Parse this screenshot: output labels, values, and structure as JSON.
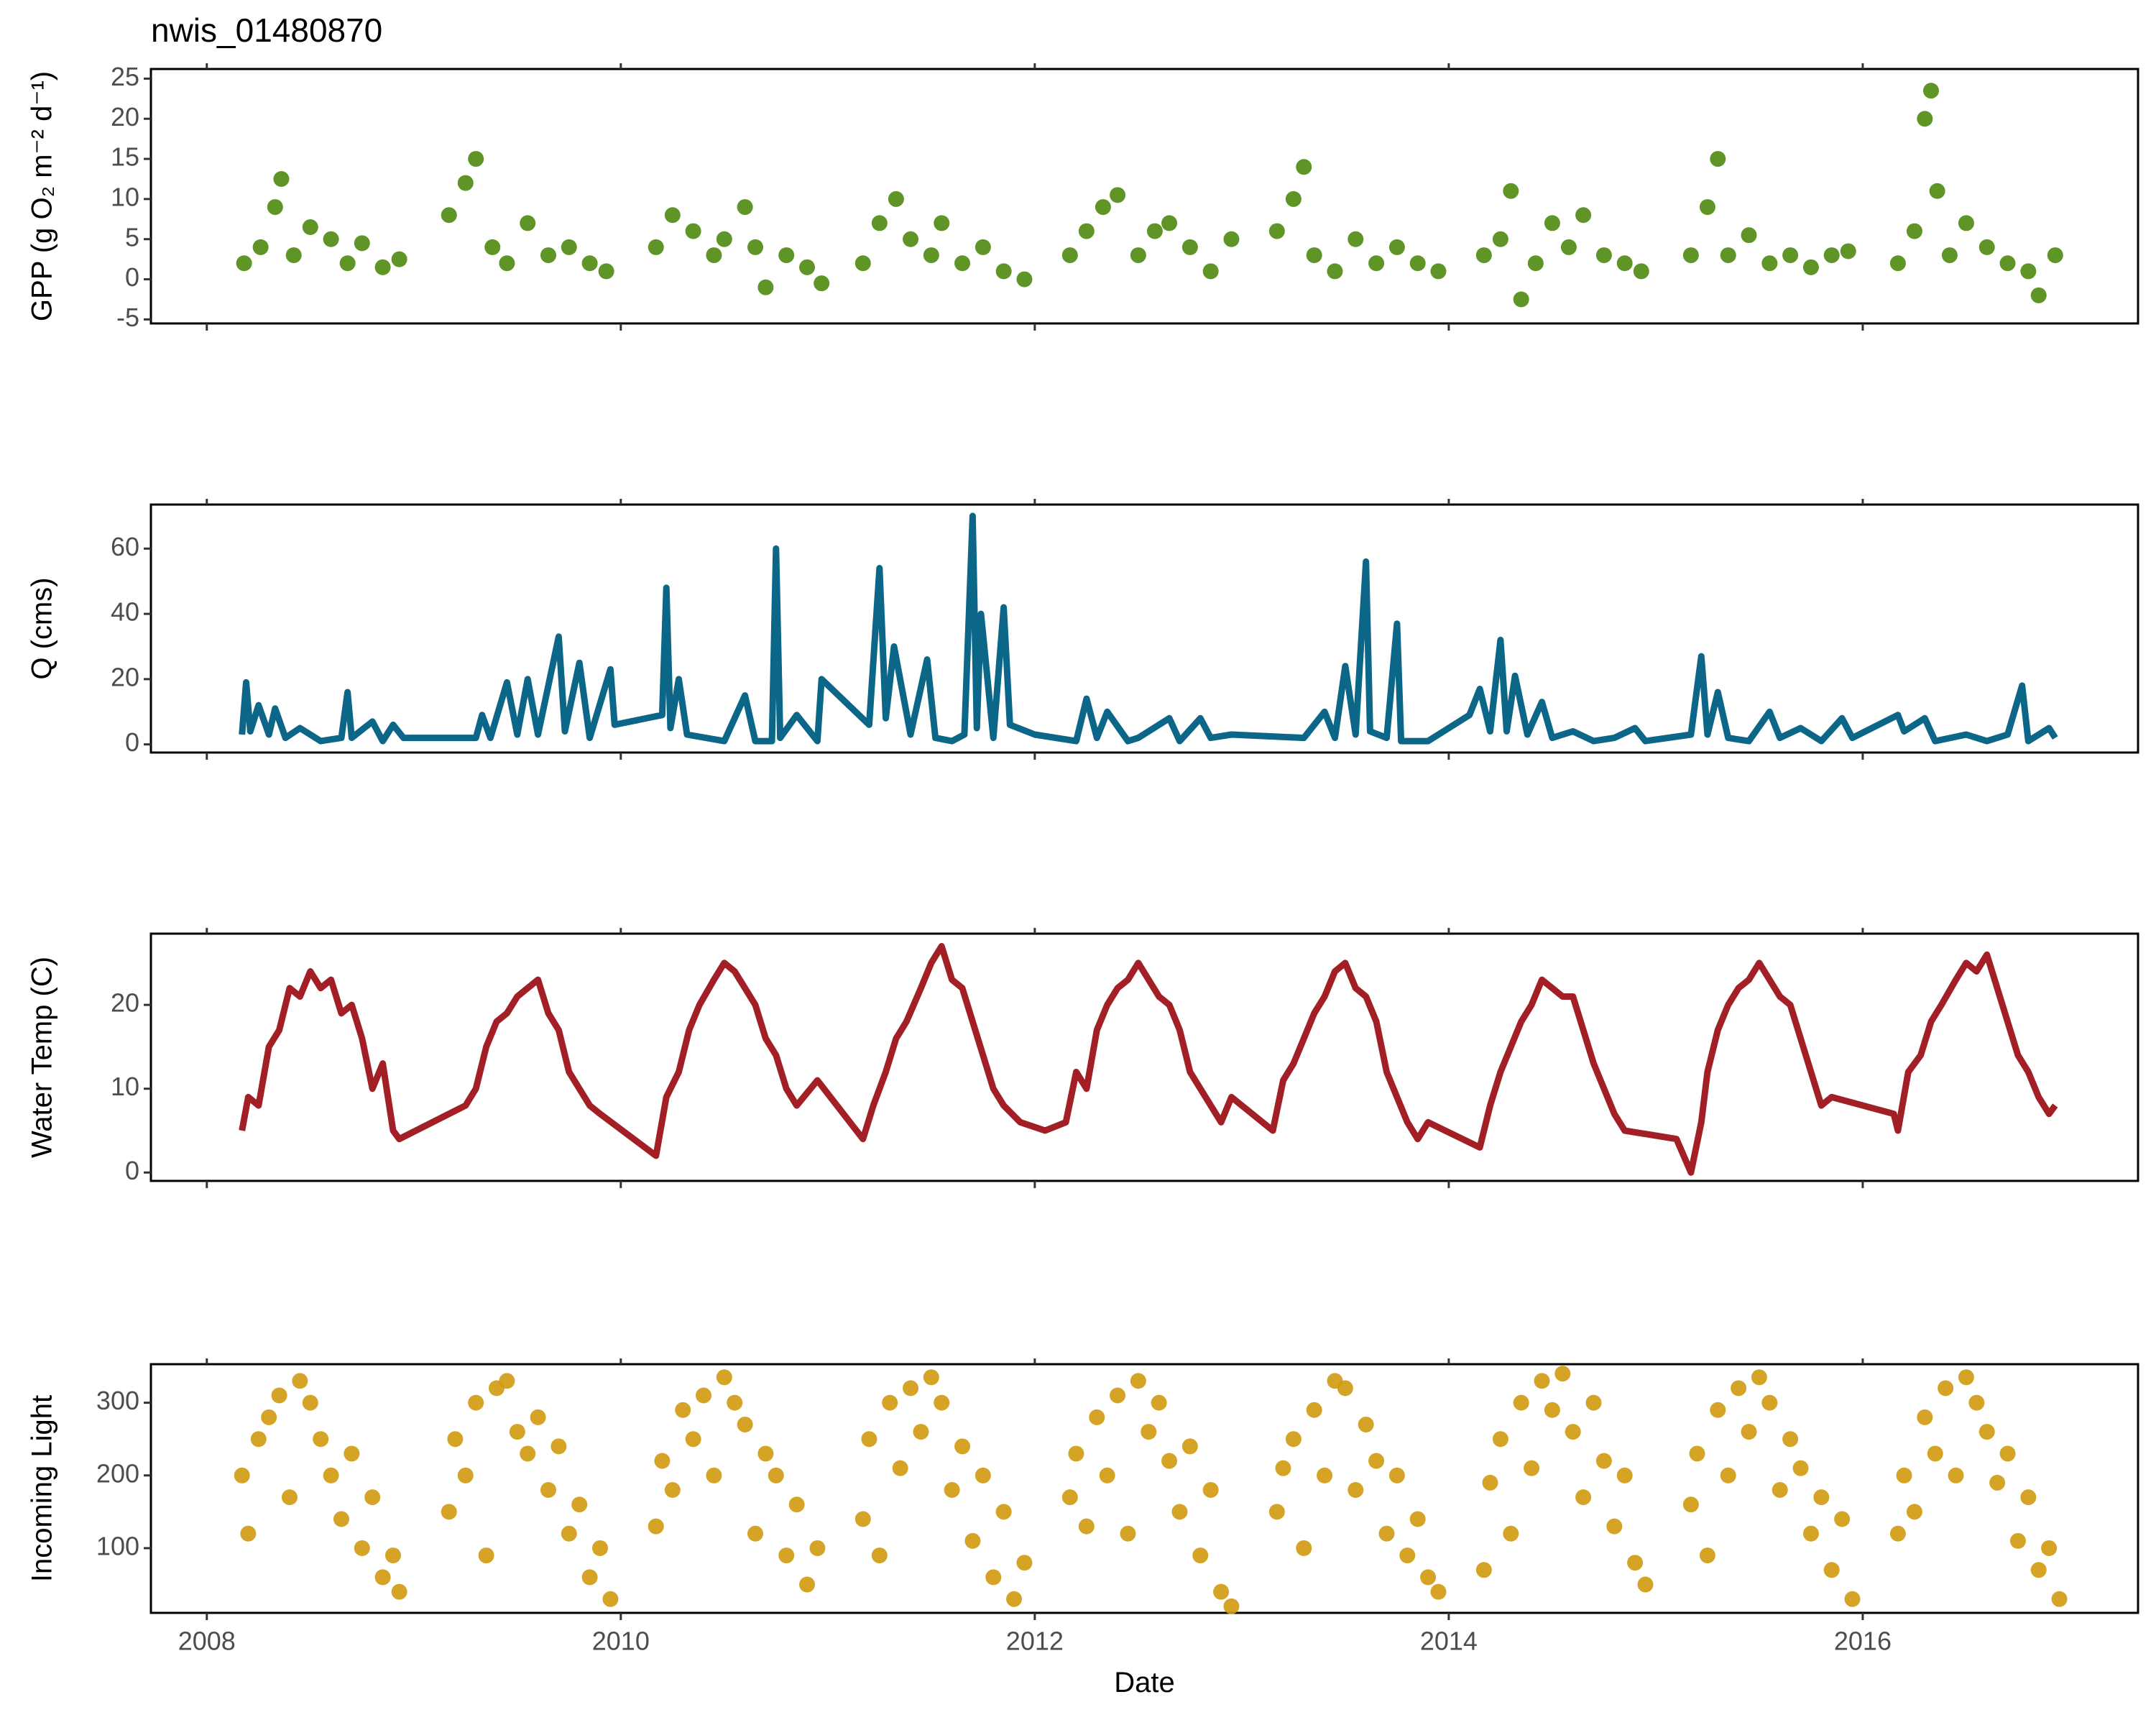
{
  "chart_data": [
    {
      "type": "scatter",
      "title": "nwis_01480870",
      "ylabel": "GPP (g O₂ m⁻² d⁻¹)",
      "color": "#4e8a0e",
      "xlim": [
        2007.73,
        2017.33
      ],
      "ylim": [
        -5.5,
        26.2
      ],
      "yticks": [
        -5,
        0,
        5,
        10,
        15,
        20,
        25
      ],
      "x": [
        2008.18,
        2008.26,
        2008.33,
        2008.36,
        2008.42,
        2008.5,
        2008.6,
        2008.68,
        2008.75,
        2008.85,
        2008.93,
        2009.17,
        2009.25,
        2009.3,
        2009.38,
        2009.45,
        2009.55,
        2009.65,
        2009.75,
        2009.85,
        2009.93,
        2010.17,
        2010.25,
        2010.35,
        2010.45,
        2010.5,
        2010.6,
        2010.65,
        2010.7,
        2010.8,
        2010.9,
        2010.97,
        2011.17,
        2011.25,
        2011.33,
        2011.4,
        2011.5,
        2011.55,
        2011.65,
        2011.75,
        2011.85,
        2011.95,
        2012.17,
        2012.25,
        2012.33,
        2012.4,
        2012.5,
        2012.58,
        2012.65,
        2012.75,
        2012.85,
        2012.95,
        2013.17,
        2013.25,
        2013.3,
        2013.35,
        2013.45,
        2013.55,
        2013.65,
        2013.75,
        2013.85,
        2013.95,
        2014.17,
        2014.25,
        2014.3,
        2014.35,
        2014.42,
        2014.5,
        2014.58,
        2014.65,
        2014.75,
        2014.85,
        2014.93,
        2015.17,
        2015.25,
        2015.3,
        2015.35,
        2015.45,
        2015.55,
        2015.65,
        2015.75,
        2015.85,
        2015.93,
        2016.17,
        2016.25,
        2016.3,
        2016.33,
        2016.36,
        2016.42,
        2016.5,
        2016.6,
        2016.7,
        2016.8,
        2016.85,
        2016.93
      ],
      "values": [
        2,
        4,
        9,
        12.5,
        3,
        6.5,
        5,
        2,
        4.5,
        1.5,
        2.5,
        8,
        12,
        15,
        4,
        2,
        7,
        3,
        4,
        2,
        1,
        4,
        8,
        6,
        3,
        5,
        9,
        4,
        -1,
        3,
        1.5,
        -0.5,
        2,
        7,
        10,
        5,
        3,
        7,
        2,
        4,
        1,
        0,
        3,
        6,
        9,
        10.5,
        3,
        6,
        7,
        4,
        1,
        5,
        6,
        10,
        14,
        3,
        1,
        5,
        2,
        4,
        2,
        1,
        3,
        5,
        11,
        -2.5,
        2,
        7,
        4,
        8,
        3,
        2,
        1,
        3,
        9,
        15,
        3,
        5.5,
        2,
        3,
        1.5,
        3,
        3.5,
        2,
        6,
        20,
        23.5,
        11,
        3,
        7,
        4,
        2,
        1,
        -2,
        3
      ]
    },
    {
      "type": "line",
      "ylabel": "Q (cms)",
      "color": "#0b6688",
      "xlim": [
        2007.73,
        2017.33
      ],
      "ylim": [
        -2.5,
        73.5
      ],
      "yticks": [
        0,
        20,
        40,
        60
      ],
      "x": [
        2008.17,
        2008.19,
        2008.21,
        2008.25,
        2008.3,
        2008.33,
        2008.38,
        2008.45,
        2008.55,
        2008.65,
        2008.68,
        2008.7,
        2008.8,
        2008.85,
        2008.9,
        2008.95,
        2009.3,
        2009.33,
        2009.37,
        2009.45,
        2009.5,
        2009.55,
        2009.6,
        2009.7,
        2009.73,
        2009.8,
        2009.85,
        2009.95,
        2009.97,
        2010.2,
        2010.22,
        2010.24,
        2010.28,
        2010.32,
        2010.5,
        2010.6,
        2010.65,
        2010.73,
        2010.75,
        2010.77,
        2010.85,
        2010.95,
        2010.97,
        2011.2,
        2011.25,
        2011.28,
        2011.32,
        2011.4,
        2011.48,
        2011.52,
        2011.6,
        2011.66,
        2011.7,
        2011.72,
        2011.74,
        2011.8,
        2011.85,
        2011.88,
        2012.0,
        2012.2,
        2012.25,
        2012.3,
        2012.35,
        2012.45,
        2012.5,
        2012.65,
        2012.7,
        2012.8,
        2012.85,
        2012.95,
        2013.3,
        2013.4,
        2013.45,
        2013.5,
        2013.55,
        2013.6,
        2013.62,
        2013.7,
        2013.75,
        2013.77,
        2013.9,
        2014.1,
        2014.15,
        2014.2,
        2014.25,
        2014.28,
        2014.32,
        2014.38,
        2014.45,
        2014.5,
        2014.6,
        2014.7,
        2014.8,
        2014.9,
        2014.95,
        2015.17,
        2015.22,
        2015.25,
        2015.3,
        2015.35,
        2015.45,
        2015.55,
        2015.6,
        2015.7,
        2015.8,
        2015.9,
        2015.95,
        2016.17,
        2016.2,
        2016.3,
        2016.35,
        2016.5,
        2016.6,
        2016.7,
        2016.77,
        2016.8,
        2016.9,
        2016.93
      ],
      "values": [
        3,
        19,
        4,
        12,
        3,
        11,
        2,
        5,
        1,
        2,
        16,
        2,
        7,
        1,
        6,
        2,
        2,
        9,
        2,
        19,
        3,
        20,
        3,
        33,
        4,
        25,
        2,
        23,
        6,
        9,
        48,
        5,
        20,
        3,
        1,
        15,
        1,
        1,
        60,
        2,
        9,
        1,
        20,
        6,
        54,
        8,
        30,
        3,
        26,
        2,
        1,
        3,
        70,
        5,
        40,
        2,
        42,
        6,
        3,
        1,
        14,
        2,
        10,
        1,
        2,
        8,
        1,
        8,
        2,
        3,
        2,
        10,
        2,
        24,
        3,
        56,
        4,
        2,
        37,
        1,
        1,
        9,
        17,
        4,
        32,
        4,
        21,
        3,
        13,
        2,
        4,
        1,
        2,
        5,
        1,
        3,
        27,
        3,
        16,
        2,
        1,
        10,
        2,
        5,
        1,
        8,
        2,
        9,
        4,
        8,
        1,
        3,
        1,
        3,
        18,
        1,
        5,
        2
      ]
    },
    {
      "type": "line",
      "ylabel": "Water Temp (C)",
      "color": "#a21f25",
      "xlim": [
        2007.73,
        2017.33
      ],
      "ylim": [
        -1,
        28.5
      ],
      "yticks": [
        0,
        10,
        20
      ],
      "x": [
        2008.17,
        2008.2,
        2008.25,
        2008.3,
        2008.35,
        2008.4,
        2008.45,
        2008.5,
        2008.55,
        2008.6,
        2008.65,
        2008.7,
        2008.75,
        2008.8,
        2008.85,
        2008.9,
        2008.93,
        2009.25,
        2009.3,
        2009.35,
        2009.4,
        2009.45,
        2009.5,
        2009.55,
        2009.6,
        2009.65,
        2009.7,
        2009.75,
        2009.8,
        2009.85,
        2009.9,
        2010.17,
        2010.22,
        2010.28,
        2010.33,
        2010.38,
        2010.45,
        2010.5,
        2010.55,
        2010.6,
        2010.65,
        2010.7,
        2010.75,
        2010.8,
        2010.85,
        2010.95,
        2011.17,
        2011.22,
        2011.28,
        2011.33,
        2011.38,
        2011.45,
        2011.5,
        2011.55,
        2011.6,
        2011.65,
        2011.7,
        2011.75,
        2011.8,
        2011.85,
        2011.93,
        2012.05,
        2012.15,
        2012.2,
        2012.25,
        2012.3,
        2012.35,
        2012.4,
        2012.45,
        2012.5,
        2012.55,
        2012.6,
        2012.65,
        2012.7,
        2012.75,
        2012.8,
        2012.9,
        2012.95,
        2013.15,
        2013.2,
        2013.25,
        2013.3,
        2013.35,
        2013.4,
        2013.45,
        2013.5,
        2013.55,
        2013.6,
        2013.65,
        2013.7,
        2013.75,
        2013.8,
        2013.85,
        2013.9,
        2014.15,
        2014.2,
        2014.25,
        2014.3,
        2014.35,
        2014.4,
        2014.45,
        2014.5,
        2014.55,
        2014.6,
        2014.65,
        2014.7,
        2014.75,
        2014.8,
        2014.85,
        2015.1,
        2015.17,
        2015.22,
        2015.25,
        2015.3,
        2015.35,
        2015.4,
        2015.45,
        2015.5,
        2015.55,
        2015.6,
        2015.65,
        2015.7,
        2015.75,
        2015.8,
        2015.85,
        2016.15,
        2016.17,
        2016.22,
        2016.28,
        2016.33,
        2016.38,
        2016.45,
        2016.5,
        2016.55,
        2016.6,
        2016.65,
        2016.7,
        2016.75,
        2016.8,
        2016.85,
        2016.9,
        2016.93
      ],
      "values": [
        5,
        9,
        8,
        15,
        17,
        22,
        21,
        24,
        22,
        23,
        19,
        20,
        16,
        10,
        13,
        5,
        4,
        8,
        10,
        15,
        18,
        19,
        21,
        22,
        23,
        19,
        17,
        12,
        10,
        8,
        7,
        2,
        9,
        12,
        17,
        20,
        23,
        25,
        24,
        22,
        20,
        16,
        14,
        10,
        8,
        11,
        4,
        8,
        12,
        16,
        18,
        22,
        25,
        27,
        23,
        22,
        18,
        14,
        10,
        8,
        6,
        5,
        6,
        12,
        10,
        17,
        20,
        22,
        23,
        25,
        23,
        21,
        20,
        17,
        12,
        10,
        6,
        9,
        5,
        11,
        13,
        16,
        19,
        21,
        24,
        25,
        22,
        21,
        18,
        12,
        9,
        6,
        4,
        6,
        3,
        8,
        12,
        15,
        18,
        20,
        23,
        22,
        21,
        21,
        17,
        13,
        10,
        7,
        5,
        4,
        0,
        6,
        12,
        17,
        20,
        22,
        23,
        25,
        23,
        21,
        20,
        16,
        12,
        8,
        9,
        7,
        5,
        12,
        14,
        18,
        20,
        23,
        25,
        24,
        26,
        22,
        18,
        14,
        12,
        9,
        7,
        8
      ]
    },
    {
      "type": "scatter",
      "ylabel": "Incoming Light",
      "xlabel": "Date",
      "color": "#d09a0e",
      "xlim": [
        2007.73,
        2017.33
      ],
      "ylim": [
        11,
        353
      ],
      "yticks": [
        100,
        200,
        300
      ],
      "xticks": [
        2008,
        2010,
        2012,
        2014,
        2016
      ],
      "x": [
        2008.17,
        2008.2,
        2008.25,
        2008.3,
        2008.35,
        2008.4,
        2008.45,
        2008.5,
        2008.55,
        2008.6,
        2008.65,
        2008.7,
        2008.75,
        2008.8,
        2008.85,
        2008.9,
        2008.93,
        2009.17,
        2009.2,
        2009.25,
        2009.3,
        2009.35,
        2009.4,
        2009.45,
        2009.5,
        2009.55,
        2009.6,
        2009.65,
        2009.7,
        2009.75,
        2009.8,
        2009.85,
        2009.9,
        2009.95,
        2010.17,
        2010.2,
        2010.25,
        2010.3,
        2010.35,
        2010.4,
        2010.45,
        2010.5,
        2010.55,
        2010.6,
        2010.65,
        2010.7,
        2010.75,
        2010.8,
        2010.85,
        2010.9,
        2010.95,
        2011.17,
        2011.2,
        2011.25,
        2011.3,
        2011.35,
        2011.4,
        2011.45,
        2011.5,
        2011.55,
        2011.6,
        2011.65,
        2011.7,
        2011.75,
        2011.8,
        2011.85,
        2011.9,
        2011.95,
        2012.17,
        2012.2,
        2012.25,
        2012.3,
        2012.35,
        2012.4,
        2012.45,
        2012.5,
        2012.55,
        2012.6,
        2012.65,
        2012.7,
        2012.75,
        2012.8,
        2012.85,
        2012.9,
        2012.95,
        2013.17,
        2013.2,
        2013.25,
        2013.3,
        2013.35,
        2013.4,
        2013.45,
        2013.5,
        2013.55,
        2013.6,
        2013.65,
        2013.7,
        2013.75,
        2013.8,
        2013.85,
        2013.9,
        2013.95,
        2014.17,
        2014.2,
        2014.25,
        2014.3,
        2014.35,
        2014.4,
        2014.45,
        2014.5,
        2014.55,
        2014.6,
        2014.65,
        2014.7,
        2014.75,
        2014.8,
        2014.85,
        2014.9,
        2014.95,
        2015.17,
        2015.2,
        2015.25,
        2015.3,
        2015.35,
        2015.4,
        2015.45,
        2015.5,
        2015.55,
        2015.6,
        2015.65,
        2015.7,
        2015.75,
        2015.8,
        2015.85,
        2015.9,
        2015.95,
        2016.17,
        2016.2,
        2016.25,
        2016.3,
        2016.35,
        2016.4,
        2016.45,
        2016.5,
        2016.55,
        2016.6,
        2016.65,
        2016.7,
        2016.75,
        2016.8,
        2016.85,
        2016.9,
        2016.95
      ],
      "values": [
        200,
        120,
        250,
        280,
        310,
        170,
        330,
        300,
        250,
        200,
        140,
        230,
        100,
        170,
        60,
        90,
        40,
        150,
        250,
        200,
        300,
        90,
        320,
        330,
        260,
        230,
        280,
        180,
        240,
        120,
        160,
        60,
        100,
        30,
        130,
        220,
        180,
        290,
        250,
        310,
        200,
        335,
        300,
        270,
        120,
        230,
        200,
        90,
        160,
        50,
        100,
        140,
        250,
        90,
        300,
        210,
        320,
        260,
        335,
        300,
        180,
        240,
        110,
        200,
        60,
        150,
        30,
        80,
        170,
        230,
        130,
        280,
        200,
        310,
        120,
        330,
        260,
        300,
        220,
        150,
        240,
        90,
        180,
        40,
        20,
        150,
        210,
        250,
        100,
        290,
        200,
        330,
        320,
        180,
        270,
        220,
        120,
        200,
        90,
        140,
        60,
        40,
        70,
        190,
        250,
        120,
        300,
        210,
        330,
        290,
        340,
        260,
        170,
        300,
        220,
        130,
        200,
        80,
        50,
        160,
        230,
        90,
        290,
        200,
        320,
        260,
        335,
        300,
        180,
        250,
        210,
        120,
        170,
        70,
        140,
        30,
        120,
        200,
        150,
        280,
        230,
        320,
        200,
        335,
        300,
        260,
        190,
        230,
        110,
        170,
        70,
        100,
        30
      ]
    }
  ]
}
